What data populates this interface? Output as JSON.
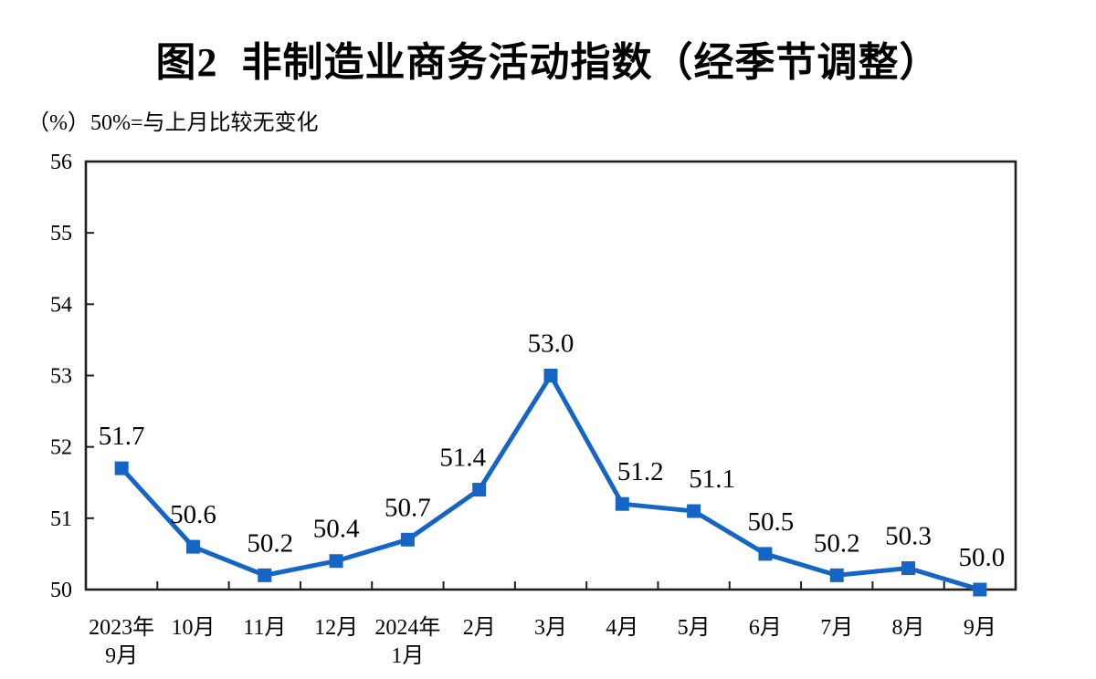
{
  "header": {
    "title": "图2 非制造业商务活动指数（经季节调整）",
    "unit_label": "（%）",
    "note": "50%=与上月比较无变化"
  },
  "chart_data": {
    "type": "line",
    "title": "图2 非制造业商务活动指数（经季节调整）",
    "unit_label": "（%）",
    "annotation": "50%=与上月比较无变化",
    "categories": [
      [
        "2023年",
        "9月"
      ],
      [
        "10月"
      ],
      [
        "11月"
      ],
      [
        "12月"
      ],
      [
        "2024年",
        "1月"
      ],
      [
        "2月"
      ],
      [
        "3月"
      ],
      [
        "4月"
      ],
      [
        "5月"
      ],
      [
        "6月"
      ],
      [
        "7月"
      ],
      [
        "8月"
      ],
      [
        "9月"
      ]
    ],
    "series": [
      {
        "name": "非制造业商务活动指数",
        "values": [
          51.7,
          50.6,
          50.2,
          50.4,
          50.7,
          51.4,
          53.0,
          51.2,
          51.1,
          50.5,
          50.2,
          50.3,
          50.0
        ],
        "labels": [
          "51.7",
          "50.6",
          "50.2",
          "50.4",
          "50.7",
          "51.4",
          "53.0",
          "51.2",
          "51.1",
          "50.5",
          "50.2",
          "50.3",
          "50.0"
        ],
        "color": "#1565C4",
        "marker": "square"
      }
    ],
    "ylim": [
      50,
      56
    ],
    "yticks": [
      50,
      51,
      52,
      53,
      54,
      55,
      56
    ],
    "grid": false,
    "legend_position": "none",
    "axis_color": "#1f1f1f",
    "label_color": "#000000"
  }
}
